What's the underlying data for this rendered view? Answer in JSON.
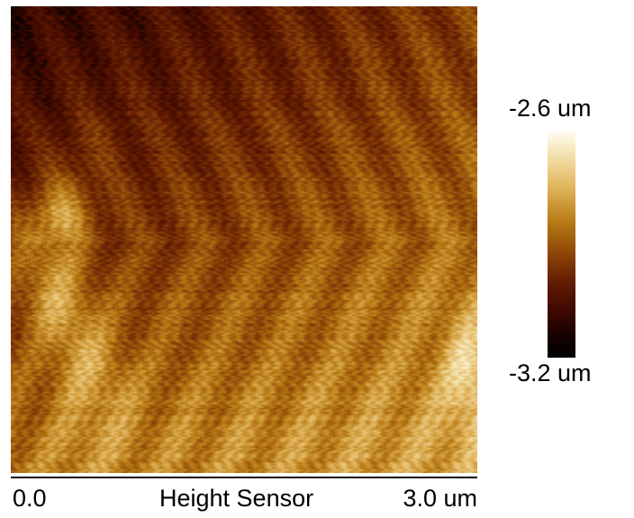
{
  "image": {
    "channel": "Height Sensor",
    "scan_axis": {
      "start_label": "0.0",
      "end_label": "3.0 um"
    }
  },
  "colorbar": {
    "max_label": "-2.6 um",
    "min_label": "-3.2 um",
    "colormap": "afm-gold",
    "stops": [
      "#000000",
      "#3c0800",
      "#5e1a02",
      "#8a4208",
      "#b77a14",
      "#e0b35a",
      "#f4e3b0",
      "#fffdf2"
    ]
  }
}
